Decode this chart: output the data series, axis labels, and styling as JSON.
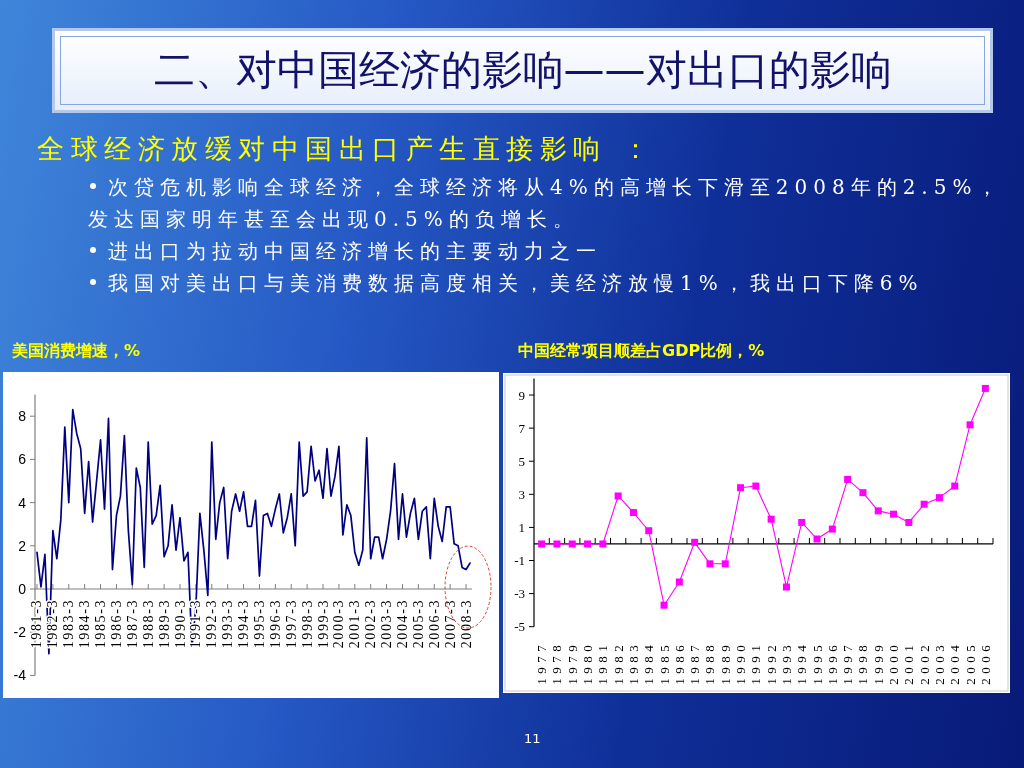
{
  "chart_data": [
    {
      "type": "other",
      "title": "二、对中国经济的影响——对出口的影响",
      "subtitle": "全球经济放缓对中国出口产生直接影响 ：",
      "annotations": [
        "次贷危机影响全球经济，全球经济将从4%的高增长下滑至2008年的2.5%，发达国家明年甚至会出现0.5%的负增长。",
        "进出口为拉动中国经济增长的主要动力之一",
        "我国对美出口与美消费数据高度相关，美经济放慢1%，我出口下降6%",
        "11"
      ]
    },
    {
      "type": "line",
      "title": "美国消费增速，%",
      "color": "#000080",
      "ylim": [
        -4,
        9
      ],
      "yticks": [
        -4,
        -2,
        0,
        2,
        4,
        6,
        8
      ],
      "categories": [
        "1981-3",
        null,
        null,
        null,
        "1982-3",
        null,
        null,
        null,
        "1983-3",
        null,
        null,
        null,
        "1984-3",
        null,
        null,
        null,
        "1985-3",
        null,
        null,
        null,
        "1986-3",
        null,
        null,
        null,
        "1987-3",
        null,
        null,
        null,
        "1988-3",
        null,
        null,
        null,
        "1989-3",
        null,
        null,
        null,
        "1990-3",
        null,
        null,
        null,
        "1991-3",
        null,
        null,
        null,
        "1992-3",
        null,
        null,
        null,
        "1993-3",
        null,
        null,
        null,
        "1994-3",
        null,
        null,
        null,
        "1995-3",
        null,
        null,
        null,
        "1996-3",
        null,
        null,
        null,
        "1997-3",
        null,
        null,
        null,
        "1998-3",
        null,
        null,
        null,
        "1999-3",
        null,
        null,
        null,
        "2000-3",
        null,
        null,
        null,
        "2001-3",
        null,
        null,
        null,
        "2002-3",
        null,
        null,
        null,
        "2003-3",
        null,
        null,
        null,
        "2004-3",
        null,
        null,
        null,
        "2005-3",
        null,
        null,
        null,
        "2006-3",
        null,
        null,
        null,
        "2007-3",
        null,
        null,
        null,
        "2008-3",
        null
      ],
      "values": [
        1.7,
        0.1,
        1.6,
        -3.0,
        2.7,
        1.4,
        3.2,
        7.5,
        4.0,
        8.3,
        7.2,
        6.5,
        3.5,
        5.9,
        3.1,
        5.0,
        6.9,
        3.7,
        7.9,
        0.9,
        3.4,
        4.3,
        7.1,
        2.7,
        0.2,
        5.6,
        4.7,
        1.0,
        6.8,
        3.0,
        3.4,
        4.8,
        1.5,
        2.0,
        3.9,
        1.8,
        3.3,
        1.3,
        1.7,
        -2.7,
        -0.8,
        3.5,
        1.8,
        -0.3,
        6.8,
        2.3,
        4.0,
        4.7,
        1.4,
        3.6,
        4.4,
        3.6,
        4.5,
        2.9,
        2.9,
        4.1,
        0.6,
        3.4,
        3.5,
        2.9,
        3.7,
        4.4,
        2.6,
        3.3,
        4.4,
        2.0,
        6.8,
        4.3,
        4.5,
        6.6,
        5.0,
        5.5,
        4.2,
        6.5,
        4.3,
        5.2,
        6.6,
        2.5,
        3.9,
        3.4,
        1.7,
        1.1,
        1.8,
        7.0,
        1.4,
        2.4,
        2.4,
        1.4,
        2.3,
        3.6,
        5.8,
        2.3,
        4.4,
        2.4,
        3.5,
        4.2,
        2.3,
        3.6,
        3.8,
        1.4,
        4.2,
        2.9,
        2.2,
        3.8,
        3.8,
        2.1,
        2.0,
        1.0,
        0.9,
        1.2
      ]
    },
    {
      "type": "line",
      "title": "中国经常项目顺差占GDP比例，%",
      "color": "#ff00ff",
      "marker": "square",
      "ylim": [
        -5,
        10
      ],
      "yticks": [
        -5,
        -3,
        -1,
        1,
        3,
        5,
        7,
        9
      ],
      "categories": [
        "1977",
        "1978",
        "1979",
        "1980",
        "1981",
        "1982",
        "1983",
        "1984",
        "1985",
        "1986",
        "1987",
        "1988",
        "1989",
        "1990",
        "1991",
        "1992",
        "1993",
        "1994",
        "1995",
        "1996",
        "1997",
        "1998",
        "1999",
        "2000",
        "2001",
        "2002",
        "2003",
        "2004",
        "2005",
        "2006"
      ],
      "values": [
        0,
        0,
        0,
        0,
        0,
        2.9,
        1.9,
        0.8,
        -3.7,
        -2.3,
        0.1,
        -1.2,
        -1.2,
        3.4,
        3.5,
        1.5,
        -2.6,
        1.3,
        0.3,
        0.9,
        3.9,
        3.1,
        2.0,
        1.8,
        1.3,
        2.4,
        2.8,
        3.5,
        7.2,
        9.4
      ]
    }
  ]
}
